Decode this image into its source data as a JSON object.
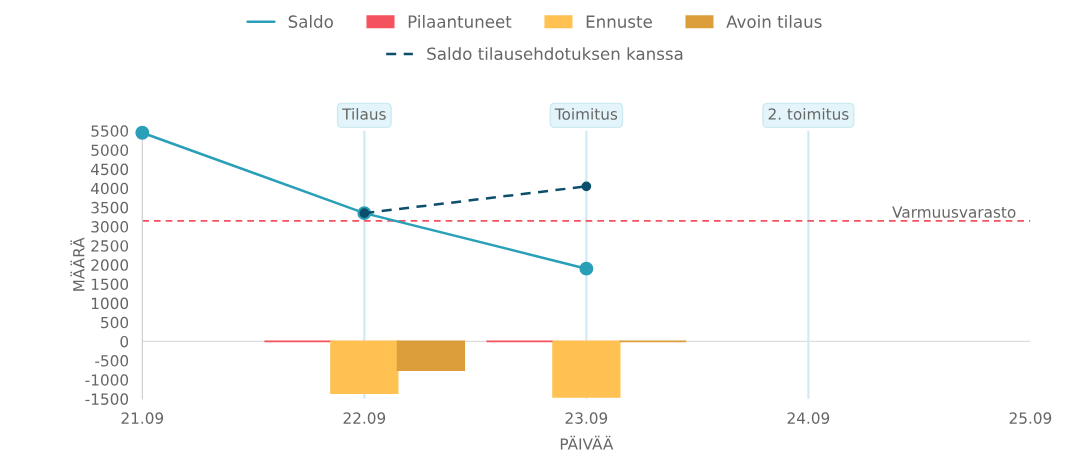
{
  "chart_data": {
    "type": "bar",
    "xlabel": "PÄIVÄÄ",
    "ylabel": "MÄÄRÄ",
    "categories": [
      "21.09",
      "22.09",
      "23.09",
      "24.09",
      "25.09"
    ],
    "series": [
      {
        "name": "Saldo",
        "type": "line",
        "color": "#2a9fb8",
        "values": [
          5450,
          3350,
          1900,
          null,
          null
        ],
        "marker": "circle",
        "line_style": "solid"
      },
      {
        "name": "Pilaantuneet",
        "color": "#f5525f",
        "values": [
          null,
          0,
          0,
          null,
          null
        ]
      },
      {
        "name": "Ennuste",
        "color": "#fec152",
        "values": [
          null,
          -1350,
          -1450,
          null,
          null
        ]
      },
      {
        "name": "Avoin tilaus",
        "color": "#dc9e3a",
        "values": [
          null,
          -750,
          0,
          null,
          null
        ]
      },
      {
        "name": "Saldo tilausehdotuksen kanssa",
        "type": "line",
        "color": "#0b4f6c",
        "values": [
          null,
          3350,
          4050,
          null,
          null
        ],
        "marker": "circle",
        "line_style": "dashed"
      }
    ],
    "ylim": [
      -1500,
      5500
    ],
    "yticks": [
      -1500,
      -1000,
      -500,
      0,
      500,
      1000,
      1500,
      2000,
      2500,
      3000,
      3500,
      4000,
      4500,
      5000,
      5500
    ],
    "ref_lines": [
      {
        "axis": "x",
        "value": "22.09",
        "label": "Tilaus",
        "color": "#cdeaf2",
        "line_style": "solid"
      },
      {
        "axis": "x",
        "value": "23.09",
        "label": "Toimitus",
        "color": "#cdeaf2",
        "line_style": "solid"
      },
      {
        "axis": "x",
        "value": "24.09",
        "label": "2. toimitus",
        "color": "#cdeaf2",
        "line_style": "solid"
      },
      {
        "axis": "y",
        "value": 3150,
        "label": "Varmuusvarasto",
        "color": "#f5525f",
        "line_style": "dashed"
      }
    ],
    "grid": false,
    "legend": "top"
  }
}
